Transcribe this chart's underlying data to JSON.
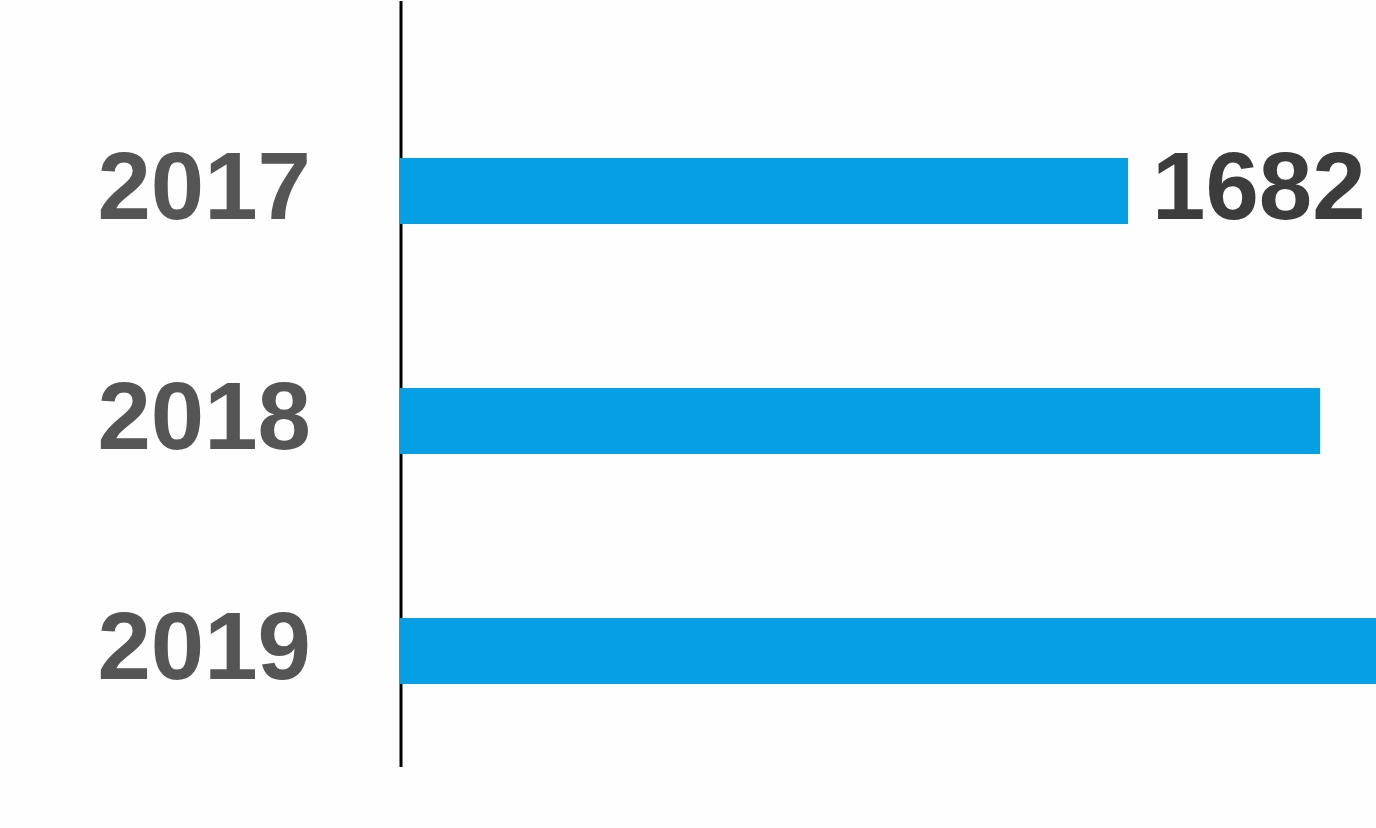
{
  "chart_data": {
    "type": "bar",
    "orientation": "horizontal",
    "categories": [
      "2017",
      "2018",
      "2019"
    ],
    "values": [
      1682,
      2126,
      2255
    ],
    "color": "#05a0e4",
    "xlim": [
      0,
      2255
    ],
    "value_labels": [
      "1682",
      null,
      null
    ],
    "tick_labels": "y"
  }
}
